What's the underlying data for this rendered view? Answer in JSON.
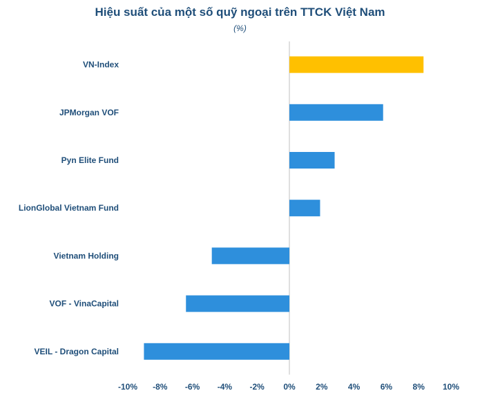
{
  "chart_data": {
    "type": "bar",
    "orientation": "horizontal",
    "title": "Hiệu suất của một số quỹ ngoại trên TTCK Việt Nam",
    "subtitle": "(%)",
    "categories": [
      "VN-Index",
      "JPMorgan VOF",
      "Pyn Elite Fund",
      "LionGlobal Vietnam Fund",
      "Vietnam Holding",
      "VOF - VinaCapital",
      "VEIL - Dragon Capital"
    ],
    "values": [
      8.3,
      5.8,
      2.8,
      1.9,
      -4.8,
      -6.4,
      -9.0
    ],
    "colors": [
      "#ffc000",
      "#2e8fdc",
      "#2e8fdc",
      "#2e8fdc",
      "#2e8fdc",
      "#2e8fdc",
      "#2e8fdc"
    ],
    "xlim": [
      -10,
      10
    ],
    "xticks": [
      -10,
      -8,
      -6,
      -4,
      -2,
      0,
      2,
      4,
      6,
      8,
      10
    ],
    "xtick_labels": [
      "-10%",
      "-8%",
      "-6%",
      "-4%",
      "-2%",
      "0%",
      "2%",
      "4%",
      "6%",
      "8%",
      "10%"
    ],
    "grid": false,
    "legend": "none"
  }
}
